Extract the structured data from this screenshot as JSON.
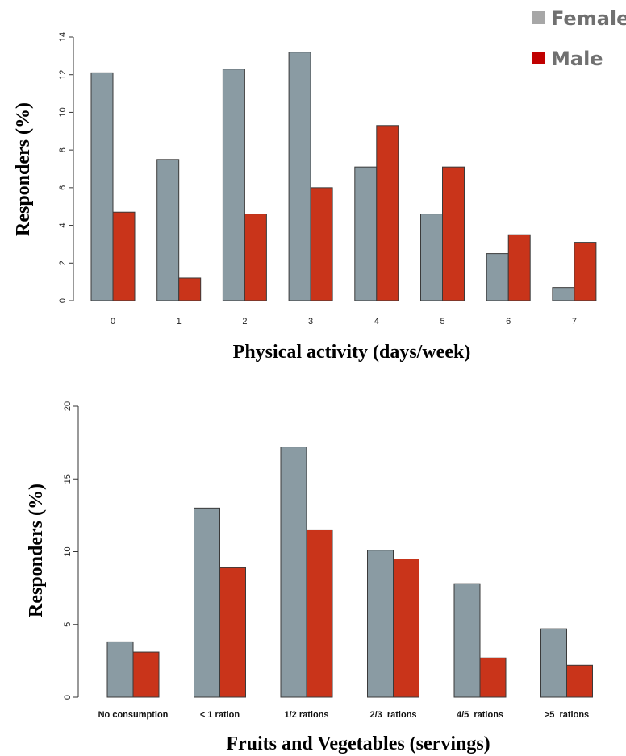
{
  "legend": [
    {
      "label": "Female",
      "color": "#8a9ba3"
    },
    {
      "label": "Male",
      "color": "#c9341a"
    }
  ],
  "chart_data": [
    {
      "type": "bar",
      "categories": [
        "0",
        "1",
        "2",
        "3",
        "4",
        "5",
        "6",
        "7"
      ],
      "series": [
        {
          "name": "Female",
          "color": "#8a9ba3",
          "values": [
            12.1,
            7.5,
            12.3,
            13.2,
            7.1,
            4.6,
            2.5,
            0.7
          ]
        },
        {
          "name": "Male",
          "color": "#c9341a",
          "values": [
            4.7,
            1.2,
            4.6,
            6.0,
            9.3,
            7.1,
            3.5,
            3.1
          ]
        }
      ],
      "xlabel": "Physical activity (days/week)",
      "ylabel": "Responders (%)",
      "ylim": [
        0,
        14
      ],
      "yticks": [
        0,
        2,
        4,
        6,
        8,
        10,
        12,
        14
      ],
      "grid": false
    },
    {
      "type": "bar",
      "categories": [
        "No consumption",
        "< 1 ration",
        "1/2 rations",
        "2/3  rations",
        "4/5  rations",
        ">5  rations"
      ],
      "series": [
        {
          "name": "Female",
          "color": "#8a9ba3",
          "values": [
            3.8,
            13.0,
            17.2,
            10.1,
            7.8,
            4.7
          ]
        },
        {
          "name": "Male",
          "color": "#c9341a",
          "values": [
            3.1,
            8.9,
            11.5,
            9.5,
            2.7,
            2.2
          ]
        }
      ],
      "xlabel": "Fruits and Vegetables (servings)",
      "ylabel": "Responders (%)",
      "ylim": [
        0,
        20
      ],
      "yticks": [
        0,
        5,
        10,
        15,
        20
      ],
      "grid": false
    }
  ]
}
